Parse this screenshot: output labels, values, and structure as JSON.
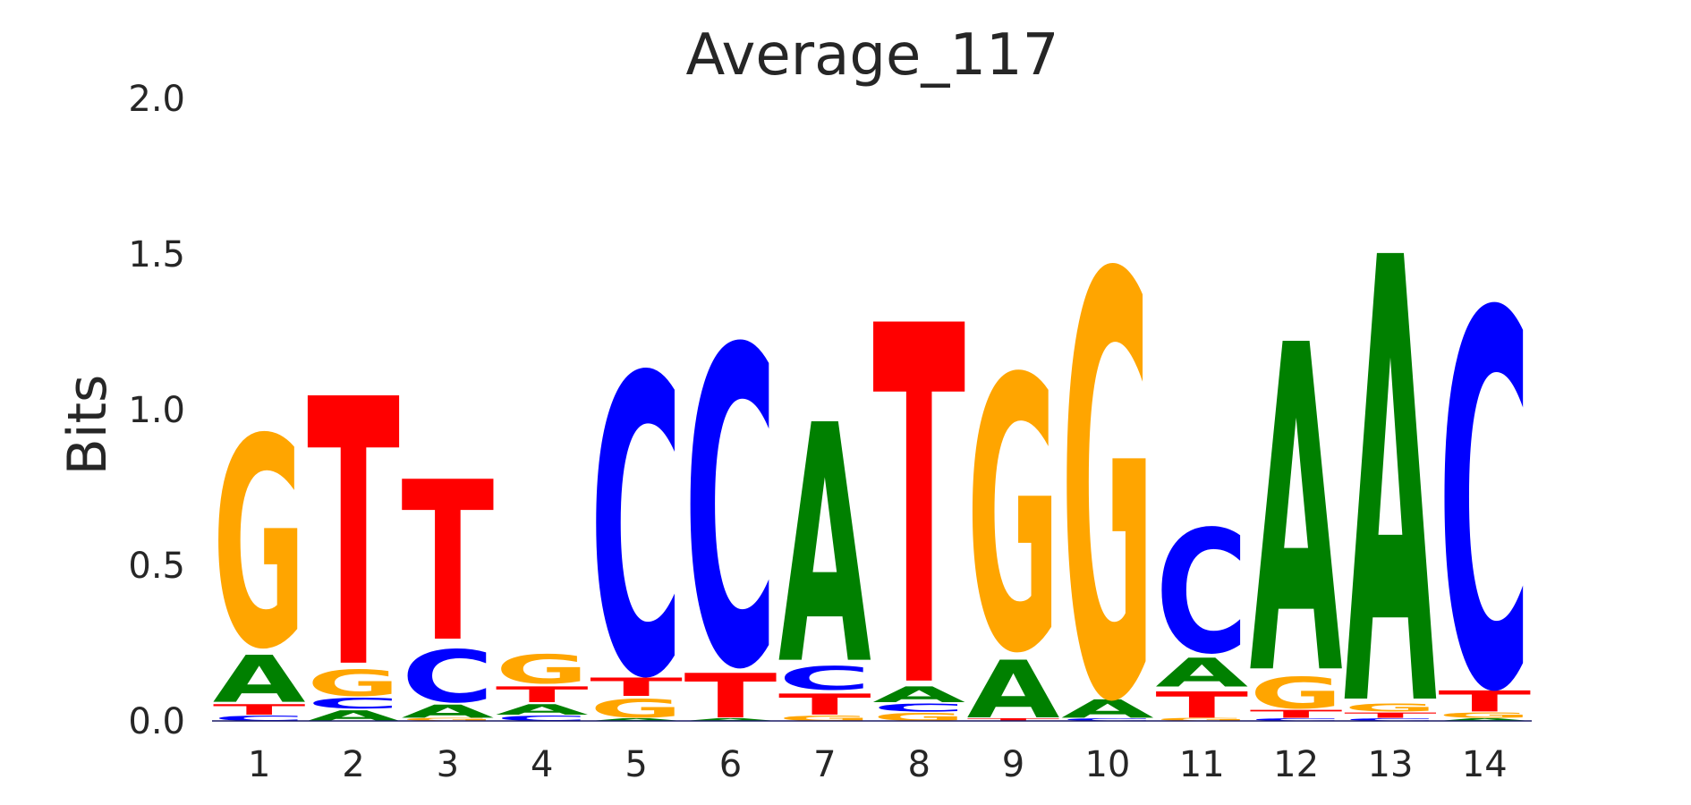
{
  "chart_data": {
    "type": "sequence-logo",
    "title": "Average_117",
    "ylabel": "Bits",
    "xlabel": "",
    "ylim": [
      0,
      2.0
    ],
    "yticks": [
      "0.0",
      "0.5",
      "1.0",
      "1.5",
      "2.0"
    ],
    "grid": false,
    "colors": {
      "A": "#008000",
      "C": "#0000ff",
      "G": "#ffa500",
      "T": "#ff0000"
    },
    "positions": [
      {
        "label": "1",
        "letters": [
          {
            "base": "C",
            "bits": 0.02
          },
          {
            "base": "T",
            "bits": 0.04
          },
          {
            "base": "A",
            "bits": 0.18
          },
          {
            "base": "G",
            "bits": 0.8
          }
        ]
      },
      {
        "label": "2",
        "letters": [
          {
            "base": "A",
            "bits": 0.04
          },
          {
            "base": "C",
            "bits": 0.04
          },
          {
            "base": "G",
            "bits": 0.1
          },
          {
            "base": "T",
            "bits": 1.02
          }
        ]
      },
      {
        "label": "3",
        "letters": [
          {
            "base": "G",
            "bits": 0.01
          },
          {
            "base": "A",
            "bits": 0.05
          },
          {
            "base": "C",
            "bits": 0.2
          },
          {
            "base": "T",
            "bits": 0.61
          }
        ]
      },
      {
        "label": "4",
        "letters": [
          {
            "base": "C",
            "bits": 0.02
          },
          {
            "base": "A",
            "bits": 0.04
          },
          {
            "base": "T",
            "bits": 0.06
          },
          {
            "base": "G",
            "bits": 0.11
          }
        ]
      },
      {
        "label": "5",
        "letters": [
          {
            "base": "A",
            "bits": 0.01
          },
          {
            "base": "G",
            "bits": 0.07
          },
          {
            "base": "T",
            "bits": 0.07
          },
          {
            "base": "C",
            "bits": 1.14
          }
        ]
      },
      {
        "label": "6",
        "letters": [
          {
            "base": "A",
            "bits": 0.01
          },
          {
            "base": "T",
            "bits": 0.17
          },
          {
            "base": "C",
            "bits": 1.21
          }
        ]
      },
      {
        "label": "7",
        "letters": [
          {
            "base": "G",
            "bits": 0.02
          },
          {
            "base": "T",
            "bits": 0.08
          },
          {
            "base": "C",
            "bits": 0.09
          },
          {
            "base": "A",
            "bits": 0.91
          }
        ]
      },
      {
        "label": "8",
        "letters": [
          {
            "base": "G",
            "bits": 0.03
          },
          {
            "base": "C",
            "bits": 0.03
          },
          {
            "base": "A",
            "bits": 0.06
          },
          {
            "base": "T",
            "bits": 1.37
          }
        ]
      },
      {
        "label": "9",
        "letters": [
          {
            "base": "T",
            "bits": 0.01
          },
          {
            "base": "A",
            "bits": 0.22
          },
          {
            "base": "G",
            "bits": 1.04
          }
        ]
      },
      {
        "label": "10",
        "letters": [
          {
            "base": "C",
            "bits": 0.01
          },
          {
            "base": "A",
            "bits": 0.07
          },
          {
            "base": "G",
            "bits": 1.61
          }
        ]
      },
      {
        "label": "11",
        "letters": [
          {
            "base": "G",
            "bits": 0.01
          },
          {
            "base": "T",
            "bits": 0.1
          },
          {
            "base": "A",
            "bits": 0.11
          },
          {
            "base": "C",
            "bits": 0.47
          }
        ]
      },
      {
        "label": "12",
        "letters": [
          {
            "base": "C",
            "bits": 0.01
          },
          {
            "base": "T",
            "bits": 0.03
          },
          {
            "base": "G",
            "bits": 0.12
          },
          {
            "base": "A",
            "bits": 1.25
          }
        ]
      },
      {
        "label": "13",
        "letters": [
          {
            "base": "C",
            "bits": 0.01
          },
          {
            "base": "T",
            "bits": 0.02
          },
          {
            "base": "G",
            "bits": 0.03
          },
          {
            "base": "A",
            "bits": 1.7
          }
        ]
      },
      {
        "label": "14",
        "letters": [
          {
            "base": "A",
            "bits": 0.01
          },
          {
            "base": "G",
            "bits": 0.02
          },
          {
            "base": "T",
            "bits": 0.08
          },
          {
            "base": "C",
            "bits": 1.43
          }
        ]
      }
    ]
  }
}
